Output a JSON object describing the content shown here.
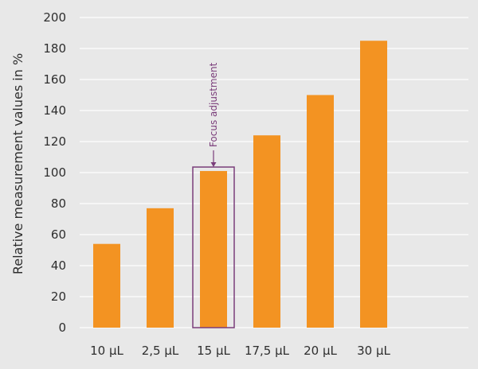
{
  "chart_data": {
    "type": "bar",
    "title": "",
    "xlabel": "",
    "ylabel": "Relative measurement values in %",
    "categories": [
      "10 µL",
      "2,5 µL",
      "15 µL",
      "17,5 µL",
      "20 µL",
      "30 µL"
    ],
    "values": [
      54,
      77,
      101,
      124,
      150,
      185
    ],
    "ylim": [
      0,
      200
    ],
    "yticks": [
      0,
      20,
      40,
      60,
      80,
      100,
      120,
      140,
      160,
      180,
      200
    ],
    "grid": true,
    "legend": "none",
    "annotation": {
      "text": "Focus adjustment",
      "category": "15 µL"
    },
    "colors": {
      "bar": "#f39322",
      "grid": "#ffffff",
      "annotation": "#7a3d7a",
      "background": "#e8e8e8",
      "text": "#2e2e2e"
    }
  }
}
